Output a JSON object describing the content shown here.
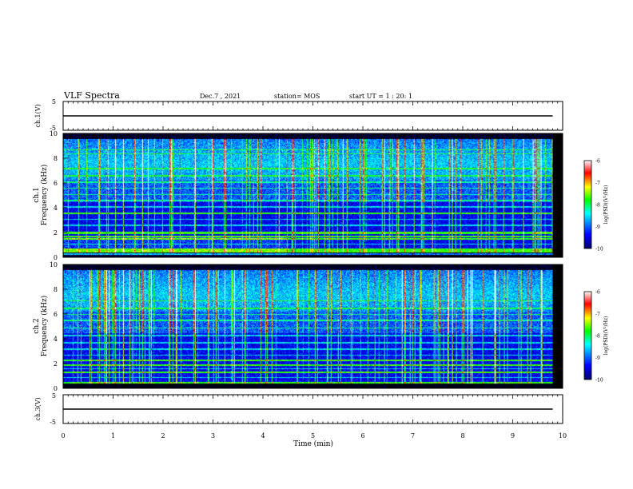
{
  "header": {
    "title": "VLF Spectra",
    "date": "Dec.7 , 2021",
    "station": "station= MOS",
    "start": "start  UT =  1 : 20: 1"
  },
  "chart_data": [
    {
      "type": "line",
      "name": "ch1-waveform",
      "ylabel": "ch.1(V)",
      "ylim": [
        -5,
        5
      ],
      "yticks": [
        "5",
        "-5"
      ],
      "xlim": [
        0,
        10
      ],
      "x": [
        0,
        9.8
      ],
      "y": [
        0,
        0
      ]
    },
    {
      "type": "heatmap",
      "name": "ch1-spectrogram",
      "ylabel_top": "ch.1",
      "ylabel": "Frequency (kHz)",
      "xlim": [
        0,
        10
      ],
      "ylim": [
        0,
        10
      ],
      "data_xmax": 9.8,
      "yticks": [
        "0",
        "2",
        "4",
        "6",
        "8",
        "10"
      ],
      "colorbar": {
        "label": "log(PSD)(V²/Hz)",
        "ticks": [
          "-6",
          "-7",
          "-8",
          "-9",
          "-10"
        ],
        "range": [
          -10,
          -6
        ]
      },
      "strong_lines_khz": [
        0.3,
        0.5,
        0.65,
        1.5,
        1.7,
        2.0,
        3.6
      ],
      "weak_lines_khz": [
        1.1,
        2.6,
        3.1,
        4.1,
        4.6,
        5.1,
        5.6,
        6.1,
        6.6,
        7.2,
        8.4,
        8.7
      ]
    },
    {
      "type": "heatmap",
      "name": "ch2-spectrogram",
      "ylabel_top": "ch.2",
      "ylabel": "Frequency (kHz)",
      "xlim": [
        0,
        10
      ],
      "ylim": [
        0,
        10
      ],
      "data_xmax": 9.8,
      "yticks": [
        "0",
        "2",
        "4",
        "6",
        "8",
        "10"
      ],
      "colorbar": {
        "label": "log(PSD)(V²/Hz)",
        "ticks": [
          "-6",
          "-7",
          "-8",
          "-9",
          "-10"
        ],
        "range": [
          -10,
          -6
        ]
      },
      "strong_lines_khz": [
        0.5,
        1.3,
        1.9,
        2.3
      ],
      "weak_lines_khz": [
        0.9,
        1.6,
        2.7,
        3.2,
        3.7,
        4.3,
        4.9,
        5.5,
        6.0,
        6.5,
        7.1
      ]
    },
    {
      "type": "line",
      "name": "ch3-waveform",
      "ylabel": "ch.3(V)",
      "ylim": [
        -5,
        5
      ],
      "yticks": [
        "5",
        "-5"
      ],
      "xlim": [
        0,
        10
      ],
      "x": [
        0,
        9.8
      ],
      "y": [
        0,
        0
      ]
    }
  ],
  "time_axis": {
    "label": "Time  (min)",
    "ticks": [
      "0",
      "1",
      "2",
      "3",
      "4",
      "5",
      "6",
      "7",
      "8",
      "9",
      "10"
    ]
  },
  "colors": {
    "background": "#000000",
    "colormap": [
      "#000066",
      "#0000ff",
      "#00ffff",
      "#00ff00",
      "#ffff00",
      "#ff0000",
      "#ffffff"
    ]
  }
}
